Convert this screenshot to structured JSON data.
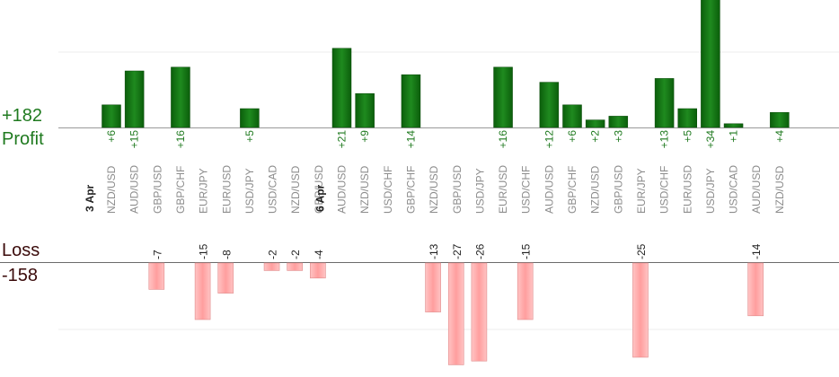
{
  "chart_data": {
    "type": "bar",
    "profit": {
      "total": "+182",
      "label": "Profit",
      "color": "#0a6b0a"
    },
    "loss": {
      "total": "-158",
      "label": "Loss",
      "color": "#ffb3b3"
    },
    "columns": [
      {
        "date": "3 Apr",
        "pair": "NZD/USD",
        "profit": 6
      },
      {
        "pair": "AUD/USD",
        "profit": 15
      },
      {
        "pair": "GBP/USD",
        "loss": 7
      },
      {
        "pair": "GBP/CHF",
        "profit": 16
      },
      {
        "pair": "EUR/JPY",
        "loss": 15
      },
      {
        "pair": "EUR/USD",
        "loss": 8
      },
      {
        "pair": "USD/JPY",
        "profit": 5
      },
      {
        "pair": "USD/CAD",
        "loss": 2
      },
      {
        "pair": "NZD/USD",
        "loss": 2
      },
      {
        "pair": "GBP/USD",
        "loss": 4
      },
      {
        "date": "6 Apr",
        "pair": "AUD/USD",
        "profit": 21
      },
      {
        "pair": "NZD/USD",
        "profit": 9
      },
      {
        "pair": "USD/CHF"
      },
      {
        "pair": "GBP/CHF",
        "profit": 14
      },
      {
        "pair": "NZD/USD",
        "loss": 13
      },
      {
        "pair": "GBP/USD",
        "loss": 27
      },
      {
        "pair": "USD/JPY",
        "loss": 26
      },
      {
        "pair": "EUR/USD",
        "profit": 16
      },
      {
        "pair": "USD/CHF",
        "loss": 15
      },
      {
        "pair": "AUD/USD",
        "profit": 12
      },
      {
        "pair": "GBP/CHF",
        "profit": 6
      },
      {
        "pair": "NZD/USD",
        "profit": 2
      },
      {
        "pair": "GBP/USD",
        "profit": 3
      },
      {
        "pair": "EUR/JPY",
        "loss": 25
      },
      {
        "pair": "USD/CHF",
        "profit": 13
      },
      {
        "pair": "EUR/USD",
        "profit": 5
      },
      {
        "pair": "USD/JPY",
        "profit": 34
      },
      {
        "pair": "USD/CAD",
        "profit": 1
      },
      {
        "pair": "AUD/USD",
        "loss": 14
      },
      {
        "pair": "NZD/USD",
        "profit": 4
      }
    ]
  }
}
